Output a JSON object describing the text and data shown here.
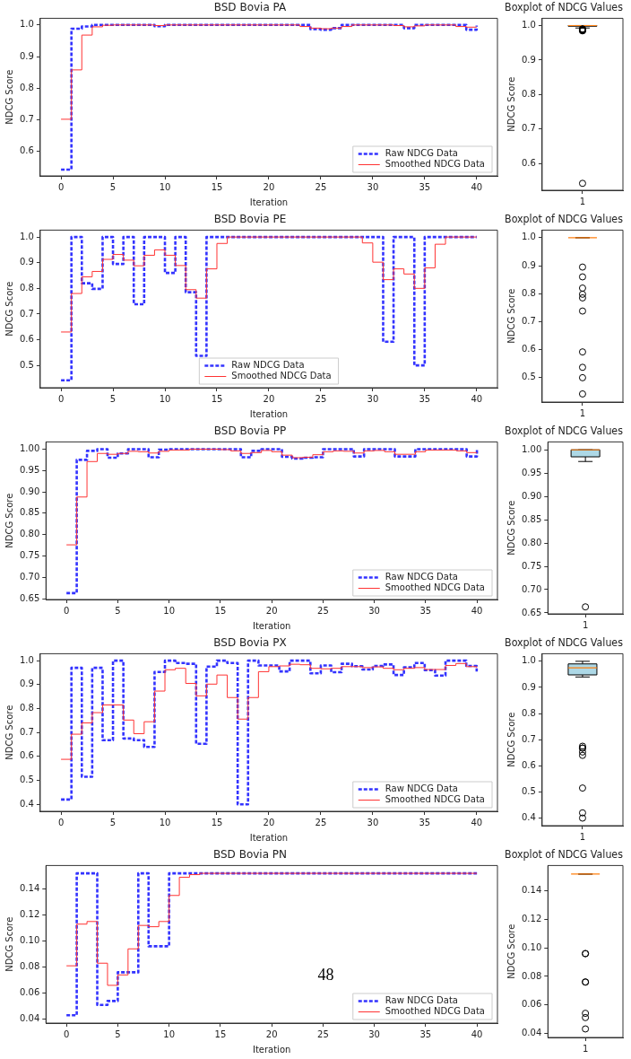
{
  "chart_data": [
    {
      "type": "step",
      "title": "BSD Bovia PA",
      "xlabel": "Iteration",
      "ylabel": "NDCG Score",
      "x": [
        0,
        1,
        2,
        3,
        4,
        5,
        6,
        7,
        8,
        9,
        10,
        11,
        12,
        13,
        14,
        15,
        16,
        17,
        18,
        19,
        20,
        21,
        22,
        23,
        24,
        25,
        26,
        27,
        28,
        29,
        30,
        31,
        32,
        33,
        34,
        35,
        36,
        37,
        38,
        39,
        40
      ],
      "xlim": [
        -2,
        42
      ],
      "xticks": [
        0,
        5,
        10,
        15,
        20,
        25,
        30,
        35,
        40
      ],
      "ylim": [
        0.523,
        1.021
      ],
      "yticks": [
        0.6,
        0.7,
        0.8,
        0.9,
        {
          "value": 1,
          "label": "1.0"
        }
      ],
      "legend": "bottom right",
      "series": [
        {
          "name": "Raw NDCG Data",
          "color": "#3333ff",
          "line_style": "dashed",
          "values": [
            0.543,
            0.988,
            0.995,
            1,
            1,
            1,
            1,
            1,
            1,
            0.996,
            1,
            1,
            1,
            1,
            1,
            1,
            1,
            1,
            1,
            1,
            1,
            1,
            1,
            1,
            0.987,
            0.985,
            0.99,
            1,
            1,
            1,
            1,
            1,
            1,
            0.99,
            1,
            1,
            1,
            1,
            1,
            0.985,
            0.998
          ]
        },
        {
          "name": "Smoothed NDCG Data",
          "color": "#ff3333",
          "line_style": "solid",
          "values": [
            0.702,
            0.858,
            0.968,
            0.994,
            0.999,
            1,
            1,
            1,
            1,
            0.998,
            1,
            1,
            1,
            1,
            1,
            1,
            1,
            1,
            1,
            1,
            1,
            1,
            1,
            0.995,
            0.99,
            0.988,
            0.99,
            0.995,
            1,
            1,
            1,
            1,
            0.998,
            0.994,
            0.997,
            1,
            1,
            1,
            0.995,
            0.993,
            0.993
          ]
        }
      ]
    },
    {
      "type": "box",
      "title": "Boxplot of NDCG Values",
      "ylabel": "NDCG Score",
      "categories": [
        "1"
      ],
      "ylim": [
        0.523,
        1.021
      ],
      "yticks": [
        0.6,
        0.7,
        0.8,
        0.9,
        {
          "value": 1,
          "label": "1.0"
        }
      ],
      "boxes": [
        {
          "low": 0.993,
          "q1": 0.998,
          "median": 1,
          "q3": 1,
          "high": 1,
          "outliers": [
            0.99,
            0.988,
            0.987,
            0.985,
            0.985,
            0.99,
            0.543
          ]
        }
      ]
    },
    {
      "type": "step",
      "title": "BSD Bovia PE",
      "xlabel": "Iteration",
      "ylabel": "NDCG Score",
      "x": [
        0,
        1,
        2,
        3,
        4,
        5,
        6,
        7,
        8,
        9,
        10,
        11,
        12,
        13,
        14,
        15,
        16,
        17,
        18,
        19,
        20,
        21,
        22,
        23,
        24,
        25,
        26,
        27,
        28,
        29,
        30,
        31,
        32,
        33,
        34,
        35,
        36,
        37,
        38,
        39,
        40
      ],
      "xlim": [
        -2,
        42
      ],
      "xticks": [
        0,
        5,
        10,
        15,
        20,
        25,
        30,
        35,
        40
      ],
      "ylim": [
        0.413,
        1.027
      ],
      "yticks": [
        0.5,
        0.6,
        0.7,
        0.8,
        0.9,
        {
          "value": 1,
          "label": "1.0"
        }
      ],
      "legend": "bottom",
      "series": [
        {
          "name": "Raw NDCG Data",
          "color": "#3333ff",
          "line_style": "dashed",
          "values": [
            0.442,
            1,
            0.82,
            0.798,
            1,
            0.895,
            1,
            0.738,
            1,
            1,
            0.86,
            1,
            0.785,
            0.537,
            1,
            1,
            1,
            1,
            1,
            1,
            1,
            1,
            1,
            1,
            1,
            1,
            1,
            1,
            1,
            1,
            1,
            0.592,
            1,
            1,
            0.5,
            1,
            1,
            1,
            1,
            1,
            1
          ]
        },
        {
          "name": "Smoothed NDCG Data",
          "color": "#ff3333",
          "line_style": "solid",
          "values": [
            0.63,
            0.78,
            0.845,
            0.866,
            0.913,
            0.932,
            0.91,
            0.888,
            0.929,
            0.95,
            0.929,
            0.889,
            0.795,
            0.762,
            0.876,
            0.975,
            1,
            1,
            1,
            1,
            1,
            1,
            1,
            1,
            1,
            1,
            1,
            1,
            1,
            0.977,
            0.902,
            0.834,
            0.876,
            0.856,
            0.8,
            0.88,
            0.972,
            1,
            1,
            1,
            1
          ]
        }
      ]
    },
    {
      "type": "box",
      "title": "Boxplot of NDCG Values",
      "ylabel": "NDCG Score",
      "categories": [
        "1"
      ],
      "ylim": [
        0.413,
        1.027
      ],
      "yticks": [
        0.5,
        0.6,
        0.7,
        0.8,
        0.9,
        {
          "value": 1,
          "label": "1.0"
        }
      ],
      "boxes": [
        {
          "low": 1,
          "q1": 1,
          "median": 1,
          "q3": 1,
          "high": 1,
          "outliers": [
            0.895,
            0.86,
            0.82,
            0.798,
            0.785,
            0.738,
            0.592,
            0.537,
            0.5,
            0.442
          ]
        }
      ]
    },
    {
      "type": "step",
      "title": "BSD Bovia PP",
      "xlabel": "Iteration",
      "ylabel": "NDCG Score",
      "x": [
        0,
        1,
        2,
        3,
        4,
        5,
        6,
        7,
        8,
        9,
        10,
        11,
        12,
        13,
        14,
        15,
        16,
        17,
        18,
        19,
        20,
        21,
        22,
        23,
        24,
        25,
        26,
        27,
        28,
        29,
        30,
        31,
        32,
        33,
        34,
        35,
        36,
        37,
        38,
        39,
        40
      ],
      "xlim": [
        -2,
        42
      ],
      "xticks": [
        0,
        5,
        10,
        15,
        20,
        25,
        30,
        35,
        40
      ],
      "ylim": [
        0.648,
        1.017
      ],
      "yticks": [
        0.65,
        {
          "value": 0.7,
          "label": "0.70"
        },
        0.75,
        {
          "value": 0.8,
          "label": "0.80"
        },
        0.85,
        {
          "value": 0.9,
          "label": "0.90"
        },
        0.95,
        {
          "value": 1,
          "label": "1.00"
        }
      ],
      "legend": "bottom right",
      "series": [
        {
          "name": "Raw NDCG Data",
          "color": "#3333ff",
          "line_style": "dashed",
          "values": [
            0.663,
            0.975,
            0.996,
            1,
            0.98,
            0.99,
            1,
            1,
            0.981,
            0.999,
            1,
            1,
            1,
            1,
            1,
            1,
            1,
            0.981,
            0.996,
            1,
            1,
            0.982,
            0.978,
            0.98,
            0.981,
            1,
            1,
            1,
            0.983,
            1,
            1,
            1,
            0.983,
            0.983,
            1,
            1,
            1,
            1,
            1,
            0.983,
            1
          ]
        },
        {
          "name": "Smoothed NDCG Data",
          "color": "#ff3333",
          "line_style": "solid",
          "values": [
            0.776,
            0.888,
            0.971,
            0.99,
            0.988,
            0.99,
            0.995,
            0.994,
            0.991,
            0.995,
            0.998,
            0.998,
            1,
            1,
            1,
            0.999,
            0.996,
            0.99,
            0.992,
            0.997,
            0.994,
            0.986,
            0.98,
            0.981,
            0.987,
            0.994,
            0.996,
            0.995,
            0.991,
            0.996,
            0.997,
            0.994,
            0.988,
            0.988,
            0.994,
            0.998,
            0.998,
            0.998,
            0.996,
            0.992,
            0.992
          ]
        }
      ]
    },
    {
      "type": "box",
      "title": "Boxplot of NDCG Values",
      "ylabel": "NDCG Score",
      "categories": [
        "1"
      ],
      "color": "#add8e6",
      "ylim": [
        0.648,
        1.017
      ],
      "yticks": [
        0.65,
        {
          "value": 0.7,
          "label": "0.70"
        },
        0.75,
        {
          "value": 0.8,
          "label": "0.80"
        },
        0.85,
        {
          "value": 0.9,
          "label": "0.90"
        },
        0.95,
        {
          "value": 1,
          "label": "1.00"
        }
      ],
      "boxes": [
        {
          "low": 0.975,
          "q1": 0.985,
          "median": 1,
          "q3": 1,
          "high": 1,
          "outliers": [
            0.663
          ]
        }
      ]
    },
    {
      "type": "step",
      "title": "BSD Bovia PX",
      "xlabel": "Iteration",
      "ylabel": "NDCG Score",
      "x": [
        0,
        1,
        2,
        3,
        4,
        5,
        6,
        7,
        8,
        9,
        10,
        11,
        12,
        13,
        14,
        15,
        16,
        17,
        18,
        19,
        20,
        21,
        22,
        23,
        24,
        25,
        26,
        27,
        28,
        29,
        30,
        31,
        32,
        33,
        34,
        35,
        36,
        37,
        38,
        39,
        40
      ],
      "xlim": [
        -2,
        42
      ],
      "xticks": [
        0,
        5,
        10,
        15,
        20,
        25,
        30,
        35,
        40
      ],
      "ylim": [
        0.371,
        1.029
      ],
      "yticks": [
        0.4,
        0.5,
        0.6,
        0.7,
        0.8,
        0.9,
        {
          "value": 1,
          "label": "1.0"
        }
      ],
      "legend": "bottom right",
      "series": [
        {
          "name": "Raw NDCG Data",
          "color": "#3333ff",
          "line_style": "dashed",
          "values": [
            0.42,
            0.97,
            0.515,
            0.97,
            0.668,
            1,
            0.675,
            0.668,
            0.64,
            0.953,
            1,
            0.99,
            0.987,
            0.653,
            0.975,
            1,
            0.99,
            0.4,
            1,
            0.98,
            0.98,
            0.955,
            1,
            1,
            0.947,
            0.98,
            0.952,
            0.987,
            0.977,
            0.963,
            0.978,
            0.984,
            0.94,
            0.972,
            0.99,
            0.96,
            0.938,
            1,
            1,
            0.978,
            0.955
          ]
        },
        {
          "name": "Smoothed NDCG Data",
          "color": "#ff3333",
          "line_style": "solid",
          "values": [
            0.588,
            0.693,
            0.74,
            0.783,
            0.815,
            0.815,
            0.752,
            0.695,
            0.745,
            0.873,
            0.962,
            0.968,
            0.905,
            0.853,
            0.902,
            0.94,
            0.846,
            0.756,
            0.846,
            0.954,
            0.975,
            0.978,
            0.985,
            0.983,
            0.968,
            0.966,
            0.968,
            0.975,
            0.975,
            0.971,
            0.974,
            0.968,
            0.962,
            0.968,
            0.971,
            0.963,
            0.963,
            0.98,
            0.988,
            0.975,
            0.97
          ]
        }
      ]
    },
    {
      "type": "box",
      "title": "Boxplot of NDCG Values",
      "ylabel": "NDCG Score",
      "categories": [
        "1"
      ],
      "color": "#add8e6",
      "ylim": [
        0.371,
        1.029
      ],
      "yticks": [
        0.4,
        0.5,
        0.6,
        0.7,
        0.8,
        0.9,
        {
          "value": 1,
          "label": "1.0"
        }
      ],
      "boxes": [
        {
          "low": 0.94,
          "q1": 0.948,
          "median": 0.975,
          "q3": 0.99,
          "high": 1,
          "outliers": [
            0.675,
            0.668,
            0.668,
            0.653,
            0.64,
            0.515,
            0.42,
            0.4
          ]
        }
      ]
    },
    {
      "type": "step",
      "title": "BSD Bovia PN",
      "xlabel": "Iteration",
      "ylabel": "NDCG Score",
      "x": [
        0,
        1,
        2,
        3,
        4,
        5,
        6,
        7,
        8,
        9,
        10,
        11,
        12,
        13,
        14,
        15,
        16,
        17,
        18,
        19,
        20,
        21,
        22,
        23,
        24,
        25,
        26,
        27,
        28,
        29,
        30,
        31,
        32,
        33,
        34,
        35,
        36,
        37,
        38,
        39,
        40
      ],
      "xlim": [
        -2,
        42
      ],
      "xticks": [
        0,
        5,
        10,
        15,
        20,
        25,
        30,
        35,
        40
      ],
      "ylim": [
        0.037,
        0.158
      ],
      "yticks": [
        0.04,
        0.06,
        0.08,
        {
          "value": 0.1,
          "label": "0.10"
        },
        0.12,
        0.14
      ],
      "legend": "bottom right",
      "annotations": [
        "48"
      ],
      "series": [
        {
          "name": "Raw NDCG Data",
          "color": "#3333ff",
          "line_style": "dashed",
          "values": [
            0.043,
            0.152,
            0.152,
            0.051,
            0.054,
            0.076,
            0.076,
            0.152,
            0.096,
            0.096,
            0.152,
            0.152,
            0.152,
            0.152,
            0.152,
            0.152,
            0.152,
            0.152,
            0.152,
            0.152,
            0.152,
            0.152,
            0.152,
            0.152,
            0.152,
            0.152,
            0.152,
            0.152,
            0.152,
            0.152,
            0.152,
            0.152,
            0.152,
            0.152,
            0.152,
            0.152,
            0.152,
            0.152,
            0.152,
            0.152,
            0.152
          ]
        },
        {
          "name": "Smoothed NDCG Data",
          "color": "#ff3333",
          "line_style": "solid",
          "values": [
            0.081,
            0.113,
            0.115,
            0.083,
            0.066,
            0.074,
            0.094,
            0.112,
            0.111,
            0.115,
            0.135,
            0.149,
            0.151,
            0.152,
            0.152,
            0.152,
            0.152,
            0.152,
            0.152,
            0.152,
            0.152,
            0.152,
            0.152,
            0.152,
            0.152,
            0.152,
            0.152,
            0.152,
            0.152,
            0.152,
            0.152,
            0.152,
            0.152,
            0.152,
            0.152,
            0.152,
            0.152,
            0.152,
            0.152,
            0.152,
            0.152
          ]
        }
      ]
    },
    {
      "type": "box",
      "title": "Boxplot of NDCG Values",
      "ylabel": "NDCG Score",
      "categories": [
        "1"
      ],
      "ylim": [
        0.037,
        0.158
      ],
      "yticks": [
        0.04,
        0.06,
        0.08,
        {
          "value": 0.1,
          "label": "0.10"
        },
        0.12,
        0.14
      ],
      "boxes": [
        {
          "low": 0.152,
          "q1": 0.152,
          "median": 0.152,
          "q3": 0.152,
          "high": 0.152,
          "outliers": [
            0.096,
            0.096,
            0.076,
            0.076,
            0.054,
            0.051,
            0.043
          ]
        }
      ]
    }
  ]
}
